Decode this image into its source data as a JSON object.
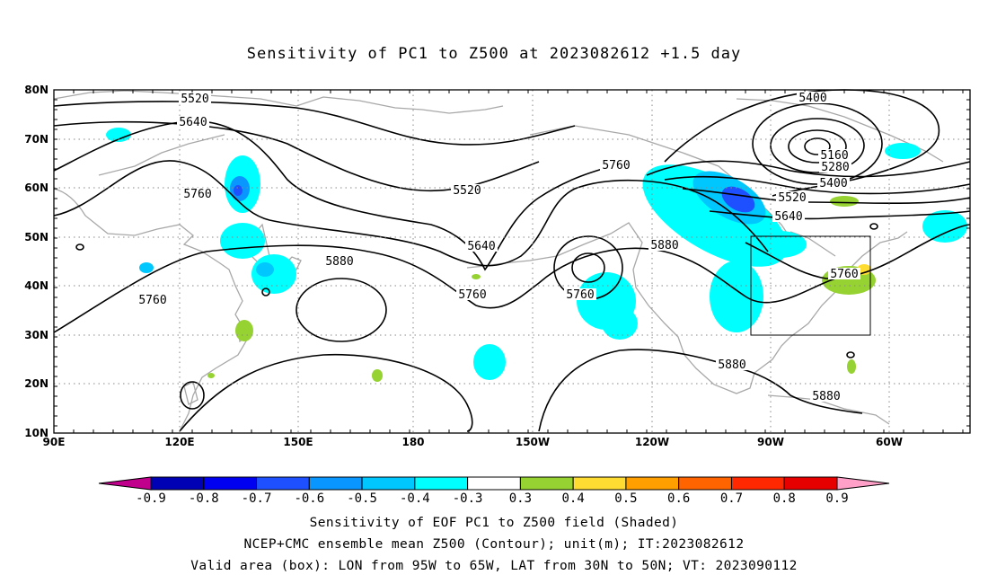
{
  "title": "Sensitivity of PC1 to Z500 at 2023082612 +1.5 day",
  "lat_labels": [
    "80N",
    "70N",
    "60N",
    "50N",
    "40N",
    "30N",
    "20N",
    "10N"
  ],
  "lon_labels": [
    "90E",
    "120E",
    "150E",
    "180",
    "150W",
    "120W",
    "90W",
    "60W"
  ],
  "colorbar": {
    "colors": [
      "#c0008c",
      "#0000b4",
      "#0000f0",
      "#1e50ff",
      "#0a96ff",
      "#00c8ff",
      "#00ffff",
      "#ffffff",
      "#96d232",
      "#ffdc32",
      "#ffa000",
      "#ff6400",
      "#ff2800",
      "#e60000",
      "#ffa0c8"
    ],
    "labels": [
      "-0.9",
      "-0.8",
      "-0.7",
      "-0.6",
      "-0.5",
      "-0.4",
      "-0.3",
      "0.3",
      "0.4",
      "0.5",
      "0.6",
      "0.7",
      "0.8",
      "0.9"
    ]
  },
  "contours": {
    "labels": [
      {
        "text": "5520"
      },
      {
        "text": "5640"
      },
      {
        "text": "5760"
      },
      {
        "text": "5760"
      },
      {
        "text": "5880"
      },
      {
        "text": "5520"
      },
      {
        "text": "5640"
      },
      {
        "text": "5760"
      },
      {
        "text": "5760"
      },
      {
        "text": "5760"
      },
      {
        "text": "5880"
      },
      {
        "text": "5400"
      },
      {
        "text": "5160"
      },
      {
        "text": "5280"
      },
      {
        "text": "5400"
      },
      {
        "text": "5520"
      },
      {
        "text": "5640"
      },
      {
        "text": "5760"
      },
      {
        "text": "5880"
      },
      {
        "text": "5880"
      }
    ]
  },
  "valid_box": {
    "lon_from": "95W",
    "lon_to": "65W",
    "lat_from": "30N",
    "lat_to": "50N"
  },
  "caption": {
    "line1": "Sensitivity of EOF PC1 to Z500 field (Shaded)",
    "line2": "NCEP+CMC ensemble mean Z500 (Contour); unit(m); IT:2023082612",
    "line3": "Valid area (box): LON from 95W to 65W, LAT from 30N to 50N; VT: 2023090112"
  }
}
